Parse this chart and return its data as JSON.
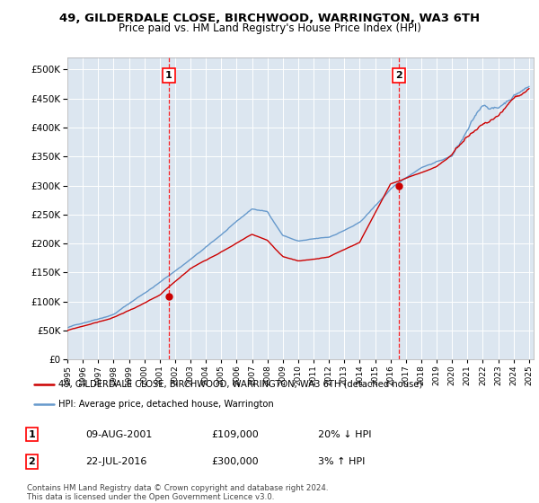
{
  "title1": "49, GILDERDALE CLOSE, BIRCHWOOD, WARRINGTON, WA3 6TH",
  "title2": "Price paid vs. HM Land Registry's House Price Index (HPI)",
  "bg_color": "#dce6f0",
  "ylabel_values": [
    0,
    50000,
    100000,
    150000,
    200000,
    250000,
    300000,
    350000,
    400000,
    450000,
    500000
  ],
  "year_start": 1995,
  "year_end": 2025,
  "sale1_date": 2001.6,
  "sale1_price": 109000,
  "sale2_date": 2016.55,
  "sale2_price": 300000,
  "legend1": "49, GILDERDALE CLOSE, BIRCHWOOD, WARRINGTON, WA3 6TH (detached house)",
  "legend2": "HPI: Average price, detached house, Warrington",
  "annotation1_date": "09-AUG-2001",
  "annotation1_price": "£109,000",
  "annotation1_hpi": "20% ↓ HPI",
  "annotation2_date": "22-JUL-2016",
  "annotation2_price": "£300,000",
  "annotation2_hpi": "3% ↑ HPI",
  "footer": "Contains HM Land Registry data © Crown copyright and database right 2024.\nThis data is licensed under the Open Government Licence v3.0.",
  "red_color": "#cc0000",
  "blue_color": "#6699cc"
}
